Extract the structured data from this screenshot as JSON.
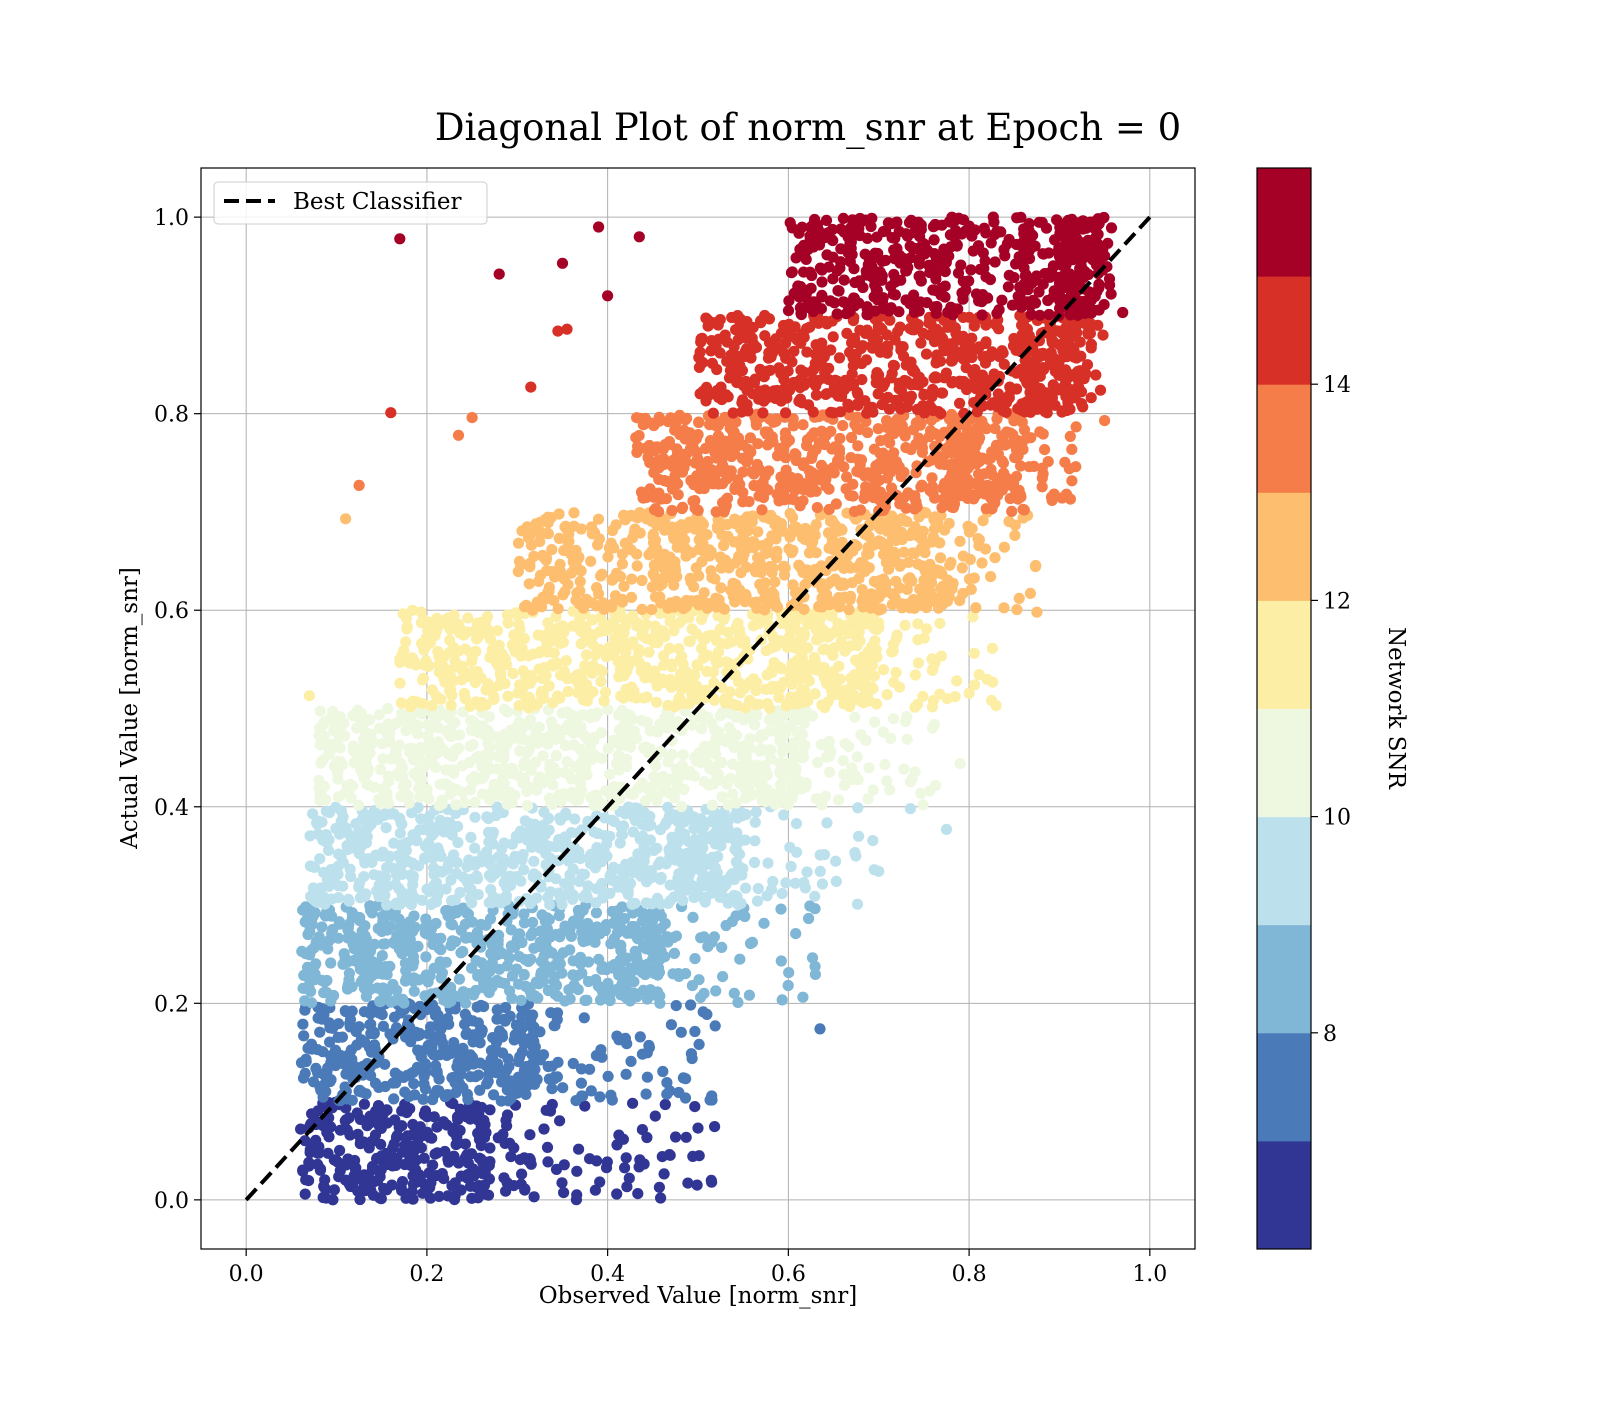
{
  "chart_data": {
    "type": "scatter",
    "title": "Diagonal Plot of norm_snr at Epoch = 0",
    "xlabel": "Observed Value [norm_snr]",
    "ylabel": "Actual Value [norm_snr]",
    "xlim": [
      -0.05,
      1.05
    ],
    "ylim": [
      -0.05,
      1.05
    ],
    "x_ticks": [
      "0.0",
      "0.2",
      "0.4",
      "0.6",
      "0.8",
      "1.0"
    ],
    "y_ticks": [
      "0.0",
      "0.2",
      "0.4",
      "0.6",
      "0.8",
      "1.0"
    ],
    "grid": true,
    "legend": {
      "placement": "upper-left",
      "entries": [
        "Best Classifier"
      ]
    },
    "reference_line": {
      "name": "Best Classifier",
      "style": "dashed",
      "color": "#000000",
      "points": [
        [
          0,
          0
        ],
        [
          1,
          1
        ]
      ]
    },
    "colorbar": {
      "label": "Network SNR",
      "range": [
        6,
        16
      ],
      "ticks": [
        "8",
        "10",
        "12",
        "14"
      ],
      "tick_values": [
        8,
        10,
        12,
        14
      ],
      "bands": [
        {
          "snr": [
            6,
            7
          ],
          "color": "#313695"
        },
        {
          "snr": [
            7,
            8
          ],
          "color": "#4a7ab8"
        },
        {
          "snr": [
            8,
            9
          ],
          "color": "#80b6d6"
        },
        {
          "snr": [
            9,
            10
          ],
          "color": "#bde1ec"
        },
        {
          "snr": [
            10,
            11
          ],
          "color": "#eef7df"
        },
        {
          "snr": [
            11,
            12
          ],
          "color": "#fdeea6"
        },
        {
          "snr": [
            12,
            13
          ],
          "color": "#fdbf6f"
        },
        {
          "snr": [
            13,
            14
          ],
          "color": "#f57d4a"
        },
        {
          "snr": [
            14,
            15
          ],
          "color": "#d73027"
        },
        {
          "snr": [
            15,
            16
          ],
          "color": "#a50026"
        }
      ]
    },
    "bands": [
      {
        "y": [
          0.0,
          0.1
        ],
        "x_core": [
          0.06,
          0.27
        ],
        "x_spread": [
          0.26,
          0.52
        ],
        "color": "#313695"
      },
      {
        "y": [
          0.1,
          0.2
        ],
        "x_core": [
          0.06,
          0.32
        ],
        "x_spread": [
          0.3,
          0.53
        ],
        "color": "#4a7ab8"
      },
      {
        "y": [
          0.2,
          0.3
        ],
        "x_core": [
          0.06,
          0.46
        ],
        "x_spread": [
          0.4,
          0.63
        ],
        "color": "#80b6d6"
      },
      {
        "y": [
          0.3,
          0.4
        ],
        "x_core": [
          0.07,
          0.55
        ],
        "x_spread": [
          0.48,
          0.7
        ],
        "color": "#bde1ec"
      },
      {
        "y": [
          0.4,
          0.5
        ],
        "x_core": [
          0.08,
          0.62
        ],
        "x_spread": [
          0.55,
          0.77
        ],
        "color": "#eef7df"
      },
      {
        "y": [
          0.5,
          0.6
        ],
        "x_core": [
          0.17,
          0.7
        ],
        "x_spread": [
          0.6,
          0.83
        ],
        "color": "#fdeea6"
      },
      {
        "y": [
          0.6,
          0.7
        ],
        "x_core": [
          0.3,
          0.78
        ],
        "x_spread": [
          0.7,
          0.88
        ],
        "color": "#fdbf6f"
      },
      {
        "y": [
          0.7,
          0.8
        ],
        "x_core": [
          0.43,
          0.86
        ],
        "x_spread": [
          0.78,
          0.92
        ],
        "color": "#f57d4a"
      },
      {
        "y": [
          0.8,
          0.9
        ],
        "x_core": [
          0.5,
          0.93
        ],
        "x_spread": [
          0.86,
          0.95
        ],
        "color": "#d73027"
      },
      {
        "y": [
          0.9,
          1.0
        ],
        "x_core": [
          0.6,
          0.95
        ],
        "x_spread": [
          0.9,
          0.96
        ],
        "color": "#a50026"
      }
    ],
    "outliers": [
      {
        "x": 0.17,
        "y": 0.978,
        "color": "#a50026"
      },
      {
        "x": 0.28,
        "y": 0.942,
        "color": "#a50026"
      },
      {
        "x": 0.35,
        "y": 0.953,
        "color": "#a50026"
      },
      {
        "x": 0.39,
        "y": 0.99,
        "color": "#a50026"
      },
      {
        "x": 0.435,
        "y": 0.98,
        "color": "#a50026"
      },
      {
        "x": 0.4,
        "y": 0.92,
        "color": "#a50026"
      },
      {
        "x": 0.97,
        "y": 0.903,
        "color": "#a50026"
      },
      {
        "x": 0.16,
        "y": 0.801,
        "color": "#d73027"
      },
      {
        "x": 0.315,
        "y": 0.827,
        "color": "#d73027"
      },
      {
        "x": 0.345,
        "y": 0.884,
        "color": "#d73027"
      },
      {
        "x": 0.355,
        "y": 0.886,
        "color": "#d73027"
      },
      {
        "x": 0.125,
        "y": 0.727,
        "color": "#f57d4a"
      },
      {
        "x": 0.25,
        "y": 0.796,
        "color": "#f57d4a"
      },
      {
        "x": 0.235,
        "y": 0.778,
        "color": "#f57d4a"
      },
      {
        "x": 0.95,
        "y": 0.793,
        "color": "#f57d4a"
      },
      {
        "x": 0.11,
        "y": 0.693,
        "color": "#fdbf6f"
      },
      {
        "x": 0.875,
        "y": 0.598,
        "color": "#fdbf6f"
      },
      {
        "x": 0.07,
        "y": 0.513,
        "color": "#fdeea6"
      },
      {
        "x": 0.83,
        "y": 0.503,
        "color": "#fdeea6"
      },
      {
        "x": 0.79,
        "y": 0.444,
        "color": "#eef7df"
      },
      {
        "x": 0.735,
        "y": 0.398,
        "color": "#bde1ec"
      },
      {
        "x": 0.775,
        "y": 0.377,
        "color": "#bde1ec"
      },
      {
        "x": 0.695,
        "y": 0.336,
        "color": "#bde1ec"
      },
      {
        "x": 0.635,
        "y": 0.174,
        "color": "#4a7ab8"
      },
      {
        "x": 0.515,
        "y": 0.018,
        "color": "#313695"
      },
      {
        "x": 0.41,
        "y": 0.006,
        "color": "#313695"
      },
      {
        "x": 0.5,
        "y": 0.073,
        "color": "#313695"
      }
    ]
  }
}
